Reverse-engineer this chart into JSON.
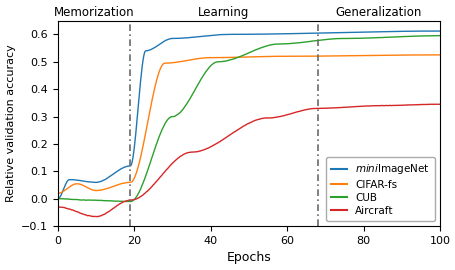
{
  "title": "",
  "xlabel": "Epochs",
  "ylabel": "Relative validation accuracy",
  "xlim": [
    0,
    100
  ],
  "ylim": [
    -0.1,
    0.65
  ],
  "vline1": 19,
  "vline2": 68,
  "label_memorization": "Memorization",
  "label_learning": "Learning",
  "label_generalization": "Generalization",
  "colors": {
    "miniImageNet": "#1f77b4",
    "CIFAR_fs": "#ff7f0e",
    "CUB": "#2ca02c",
    "Aircraft": "#d62728"
  },
  "figsize": [
    4.56,
    2.7
  ],
  "dpi": 100
}
